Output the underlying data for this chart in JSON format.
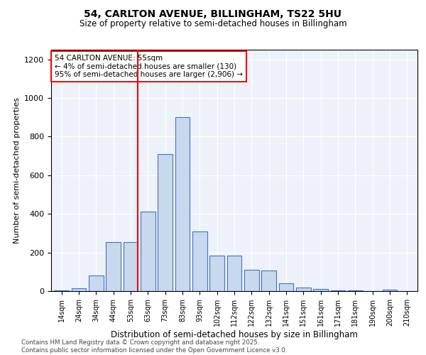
{
  "title1": "54, CARLTON AVENUE, BILLINGHAM, TS22 5HU",
  "title2": "Size of property relative to semi-detached houses in Billingham",
  "xlabel": "Distribution of semi-detached houses by size in Billingham",
  "ylabel": "Number of semi-detached properties",
  "categories": [
    "14sqm",
    "24sqm",
    "34sqm",
    "44sqm",
    "53sqm",
    "63sqm",
    "73sqm",
    "83sqm",
    "93sqm",
    "102sqm",
    "112sqm",
    "122sqm",
    "132sqm",
    "141sqm",
    "151sqm",
    "161sqm",
    "171sqm",
    "181sqm",
    "190sqm",
    "200sqm",
    "210sqm"
  ],
  "values": [
    5,
    15,
    80,
    255,
    255,
    410,
    710,
    900,
    310,
    185,
    185,
    110,
    105,
    40,
    20,
    12,
    5,
    5,
    0,
    8,
    0
  ],
  "bar_color": "#c8d9ee",
  "bar_edge_color": "#4472c4",
  "red_line_index": 4,
  "annotation_text": "54 CARLTON AVENUE: 55sqm\n← 4% of semi-detached houses are smaller (130)\n95% of semi-detached houses are larger (2,906) →",
  "ylim": [
    0,
    1250
  ],
  "yticks": [
    0,
    200,
    400,
    600,
    800,
    1000,
    1200
  ],
  "bg_color": "#edf2fa",
  "footer1": "Contains HM Land Registry data © Crown copyright and database right 2025.",
  "footer2": "Contains public sector information licensed under the Open Government Licence v3.0."
}
